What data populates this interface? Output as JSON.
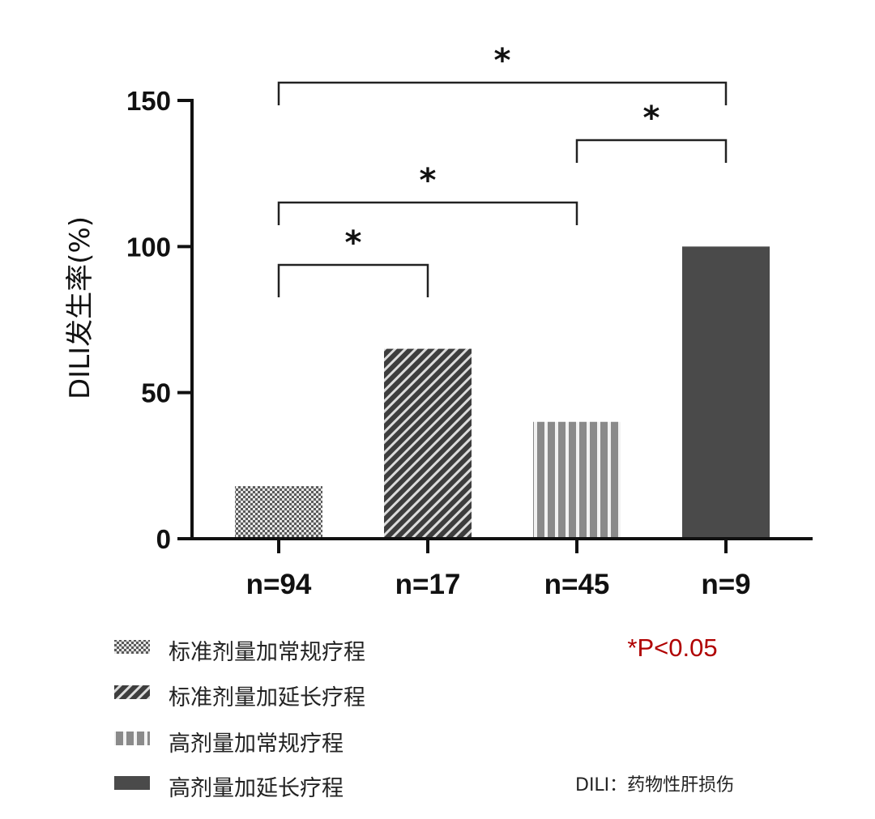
{
  "chart_data": {
    "type": "bar",
    "ylabel": "DILI发生率(%)",
    "xlabel": "",
    "ylim": [
      0,
      150
    ],
    "yticks": [
      0,
      50,
      100,
      150
    ],
    "categories": [
      "n=94",
      "n=17",
      "n=45",
      "n=9"
    ],
    "values": [
      18,
      65,
      40,
      100
    ],
    "series_names": [
      "标准剂量加常规疗程",
      "标准剂量加延长疗程",
      "高剂量加常规疗程",
      "高剂量加延长疗程"
    ],
    "patterns": [
      "checker",
      "diagonal",
      "vertical",
      "solid"
    ],
    "colors": {
      "checker": "#5a5a5a",
      "diagonal": "#3d3d3d",
      "vertical": "#8a8a8a",
      "solid": "#4a4a4a"
    },
    "significance": [
      {
        "from": 0,
        "to": 3,
        "label": "*"
      },
      {
        "from": 2,
        "to": 3,
        "label": "*"
      },
      {
        "from": 0,
        "to": 2,
        "label": "*"
      },
      {
        "from": 0,
        "to": 1,
        "label": "*"
      }
    ],
    "significance_note": "*P<0.05",
    "abbreviation_note": "DILI：药物性肝损伤",
    "legend_position": "bottom-left"
  }
}
